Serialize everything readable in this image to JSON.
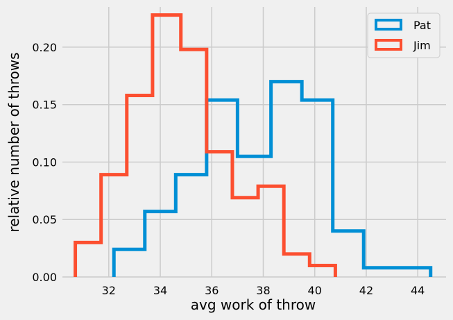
{
  "chart_data": {
    "type": "histogram-step",
    "xlabel": "avg work of throw",
    "ylabel": "relative number of throws",
    "xlim": [
      30.2,
      45.1
    ],
    "ylim": [
      0,
      0.235
    ],
    "xticks": [
      "32",
      "34",
      "36",
      "38",
      "40",
      "42",
      "44"
    ],
    "yticks": [
      "0.00",
      "0.05",
      "0.10",
      "0.15",
      "0.20"
    ],
    "grid": true,
    "legend_position": "top-right",
    "series": [
      {
        "name": "Pat",
        "color": "#008fd5",
        "edges": [
          32.2,
          33.4,
          34.6,
          35.8,
          37.0,
          38.3,
          39.5,
          40.7,
          41.9,
          43.2,
          44.5
        ],
        "values": [
          0.024,
          0.057,
          0.089,
          0.154,
          0.105,
          0.17,
          0.154,
          0.04,
          0.008,
          0.008
        ]
      },
      {
        "name": "Jim",
        "color": "#fc4f30",
        "edges": [
          30.7,
          31.7,
          32.7,
          33.7,
          34.8,
          35.8,
          36.8,
          37.8,
          38.8,
          39.8,
          40.8
        ],
        "values": [
          0.03,
          0.089,
          0.158,
          0.228,
          0.198,
          0.109,
          0.069,
          0.079,
          0.02,
          0.01
        ]
      }
    ]
  }
}
